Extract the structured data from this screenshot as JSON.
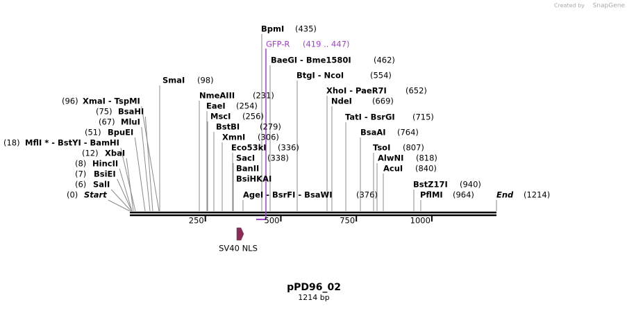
{
  "header": {
    "credit": "Created by",
    "brand": "SnapGene"
  },
  "sites": [
    {
      "name": "BpmI",
      "pos": "(435)"
    },
    {
      "name": "BaeGI  - Bme1580I",
      "pos": "(462)"
    },
    {
      "name": "BtgI  - NcoI",
      "pos": "(554)"
    },
    {
      "name": "XhoI  - PaeR7I",
      "pos": "(652)"
    },
    {
      "name": "NdeI",
      "pos": "(669)"
    },
    {
      "name": "TatI  - BsrGI",
      "pos": "(715)"
    },
    {
      "name": "BsaAI",
      "pos": "(764)"
    },
    {
      "name": "TsoI",
      "pos": "(807)"
    },
    {
      "name": "AlwNI",
      "pos": "(818)"
    },
    {
      "name": "AcuI",
      "pos": "(840)"
    },
    {
      "name": "BstZ17I",
      "pos": "(940)"
    },
    {
      "name": "PflMI",
      "pos": "(964)"
    },
    {
      "name": "End",
      "pos": "(1214)"
    },
    {
      "name": "AgeI  - BsrFI  - BsaWI",
      "pos": "(376)"
    },
    {
      "name": "BsiHKAI"
    },
    {
      "name": "BanII"
    },
    {
      "name": "SacI",
      "pos": "(338)"
    },
    {
      "name": "Eco53kI",
      "pos": "(336)"
    },
    {
      "name": "XmnI",
      "pos": "(306)"
    },
    {
      "name": "BstBI",
      "pos": "(279)"
    },
    {
      "name": "MscI",
      "pos": "(256)"
    },
    {
      "name": "EaeI",
      "pos": "(254)"
    },
    {
      "name": "NmeAIII",
      "pos": "(231)"
    },
    {
      "name": "SmaI",
      "pos": "(98)"
    },
    {
      "name": "XmaI  - TspMI",
      "pos": "(96)"
    },
    {
      "name": "BsaHI",
      "pos": "(75)"
    },
    {
      "name": "MluI",
      "pos": "(67)"
    },
    {
      "name": "BpuEI",
      "pos": "(51)"
    },
    {
      "name": "MflI * - BstYI  - BamHI",
      "pos": "(18)"
    },
    {
      "name": "XbaI",
      "pos": "(12)"
    },
    {
      "name": "HincII",
      "pos": "(8)"
    },
    {
      "name": "BsiEI",
      "pos": "(7)"
    },
    {
      "name": "SalI",
      "pos": "(6)"
    },
    {
      "name": "Start",
      "pos": "(0)"
    }
  ],
  "primer": {
    "name": "GFP-R",
    "range": "(419 .. 447)"
  },
  "ruler": {
    "ticks": [
      250,
      500,
      750,
      1000
    ],
    "length": 1214
  },
  "feature": {
    "name": "SV40 NLS"
  },
  "title": "pPD96_02",
  "subtitle": "1214 bp"
}
